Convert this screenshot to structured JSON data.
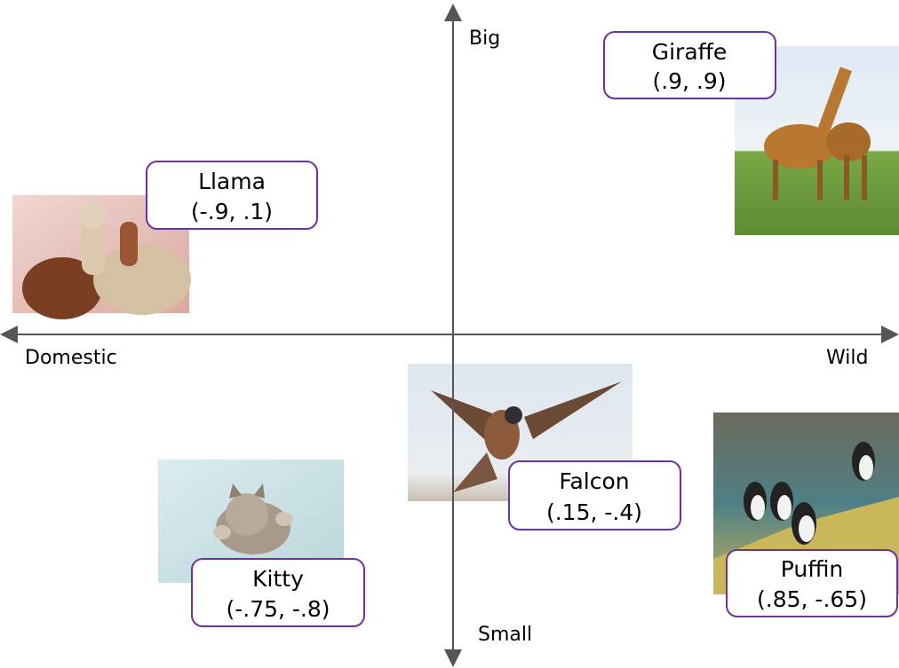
{
  "axes": {
    "top": "Big",
    "bottom": "Small",
    "left": "Domestic",
    "right": "Wild"
  },
  "nodes": [
    {
      "label": "Giraffe",
      "coords": "(.9, .9)"
    },
    {
      "label": "Llama",
      "coords": "(-.9, .1)"
    },
    {
      "label": "Falcon",
      "coords": "(.15, -.4)"
    },
    {
      "label": "Kitty",
      "coords": "(-.75, -.8)"
    },
    {
      "label": "Puffin",
      "coords": "(.85, -.65)"
    }
  ]
}
